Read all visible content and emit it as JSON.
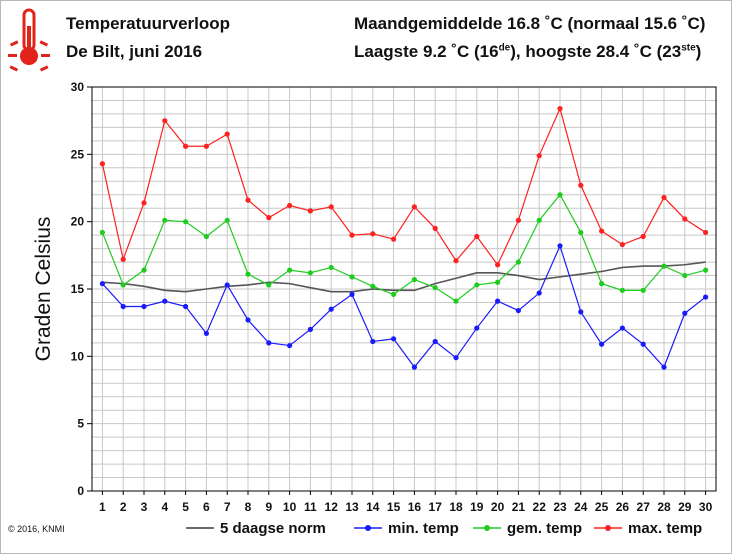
{
  "header": {
    "title": "Temperatuurverloop",
    "subtitle": "De Bilt, juni 2016",
    "stat_line1": "Maandgemiddelde 16.8 ˚C (normaal 15.6 ˚C)",
    "stat_line2_a": "Laagste 9.2 ˚C (16",
    "stat_line2_sup1": "de",
    "stat_line2_b": "), hoogste 28.4 ˚C (23",
    "stat_line2_sup2": "ste",
    "stat_line2_c": ")"
  },
  "footer": {
    "copyright": "© 2016, KNMI"
  },
  "icon": {
    "name": "thermometer-icon",
    "color": "#e2231a"
  },
  "chart_data": {
    "type": "line",
    "ylabel": "Graden Celsius",
    "xlabel": "",
    "ylim": [
      0,
      30
    ],
    "yticks": [
      0,
      5,
      10,
      15,
      20,
      25,
      30
    ],
    "x": [
      1,
      2,
      3,
      4,
      5,
      6,
      7,
      8,
      9,
      10,
      11,
      12,
      13,
      14,
      15,
      16,
      17,
      18,
      19,
      20,
      21,
      22,
      23,
      24,
      25,
      26,
      27,
      28,
      29,
      30
    ],
    "xlim": [
      0.5,
      30.5
    ],
    "grid": true,
    "legend_position": "bottom",
    "series": [
      {
        "name": "5 daagse norm",
        "color": "#555555",
        "markers": false,
        "values": [
          15.5,
          15.4,
          15.2,
          14.9,
          14.8,
          15.0,
          15.2,
          15.3,
          15.5,
          15.4,
          15.1,
          14.8,
          14.8,
          15.0,
          14.9,
          14.9,
          15.4,
          15.8,
          16.2,
          16.2,
          16.0,
          15.7,
          15.9,
          16.1,
          16.3,
          16.6,
          16.7,
          16.7,
          16.8,
          17.0
        ]
      },
      {
        "name": "min. temp",
        "color": "#1a1aff",
        "markers": true,
        "values": [
          15.4,
          13.7,
          13.7,
          14.1,
          13.7,
          11.7,
          15.3,
          12.7,
          11.0,
          10.8,
          12.0,
          13.5,
          14.6,
          11.1,
          11.3,
          9.2,
          11.1,
          9.9,
          12.1,
          14.1,
          13.4,
          14.7,
          18.2,
          13.3,
          10.9,
          12.1,
          10.9,
          9.2,
          13.2,
          14.4
        ]
      },
      {
        "name": "gem. temp",
        "color": "#1ecc1e",
        "markers": true,
        "values": [
          19.2,
          15.3,
          16.4,
          20.1,
          20.0,
          18.9,
          20.1,
          16.1,
          15.3,
          16.4,
          16.2,
          16.6,
          15.9,
          15.2,
          14.6,
          15.7,
          15.1,
          14.1,
          15.3,
          15.5,
          17.0,
          20.1,
          22.0,
          19.2,
          15.4,
          14.9,
          14.9,
          16.7,
          16.0,
          16.4
        ]
      },
      {
        "name": "max. temp",
        "color": "#ff2020",
        "markers": true,
        "values": [
          24.3,
          17.2,
          21.4,
          27.5,
          25.6,
          25.6,
          26.5,
          21.6,
          20.3,
          21.2,
          20.8,
          21.1,
          19.0,
          19.1,
          18.7,
          21.1,
          19.5,
          17.1,
          18.9,
          16.8,
          20.1,
          24.9,
          28.4,
          22.7,
          19.3,
          18.3,
          18.9,
          21.8,
          20.2,
          19.2
        ]
      }
    ]
  }
}
